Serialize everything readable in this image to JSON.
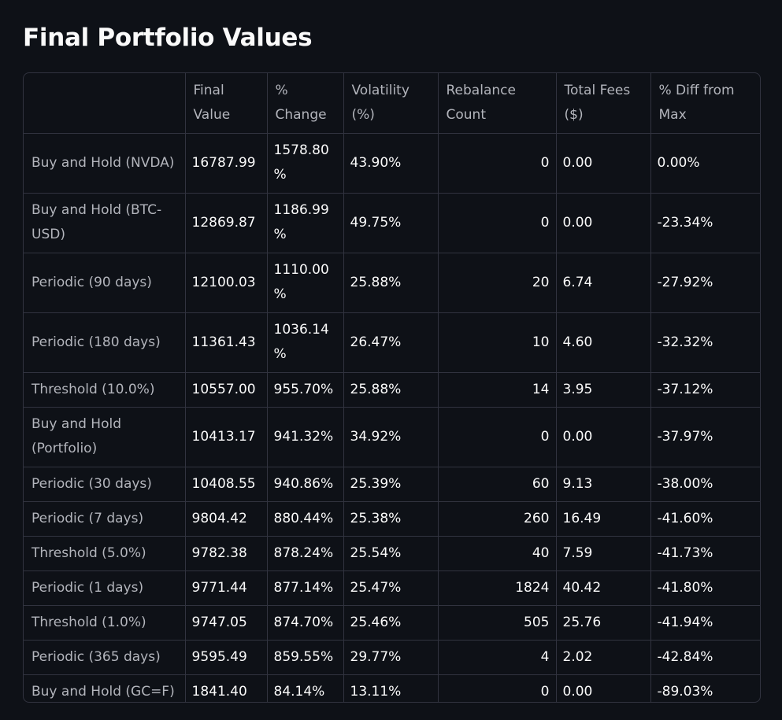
{
  "title": "Final Portfolio Values",
  "table": {
    "columns": [
      "",
      "Final Value",
      "% Change",
      "Volatility (%)",
      "Rebalance Count",
      "Total Fees ($)",
      "% Diff from Max"
    ],
    "rows": [
      {
        "label": "Buy and Hold (NVDA)",
        "final_value": "16787.99",
        "pct_change": "1578.80 %",
        "volatility": "43.90%",
        "rebalance_count": "0",
        "total_fees": "0.00",
        "diff_from_max": "0.00%"
      },
      {
        "label": "Buy and Hold (BTC-USD)",
        "final_value": "12869.87",
        "pct_change": "1186.99 %",
        "volatility": "49.75%",
        "rebalance_count": "0",
        "total_fees": "0.00",
        "diff_from_max": "-23.34%"
      },
      {
        "label": "Periodic (90 days)",
        "final_value": "12100.03",
        "pct_change": "1110.00 %",
        "volatility": "25.88%",
        "rebalance_count": "20",
        "total_fees": "6.74",
        "diff_from_max": "-27.92%"
      },
      {
        "label": "Periodic (180 days)",
        "final_value": "11361.43",
        "pct_change": "1036.14 %",
        "volatility": "26.47%",
        "rebalance_count": "10",
        "total_fees": "4.60",
        "diff_from_max": "-32.32%"
      },
      {
        "label": "Threshold (10.0%)",
        "final_value": "10557.00",
        "pct_change": "955.70%",
        "volatility": "25.88%",
        "rebalance_count": "14",
        "total_fees": "3.95",
        "diff_from_max": "-37.12%"
      },
      {
        "label": "Buy and Hold (Portfolio)",
        "final_value": "10413.17",
        "pct_change": "941.32%",
        "volatility": "34.92%",
        "rebalance_count": "0",
        "total_fees": "0.00",
        "diff_from_max": "-37.97%"
      },
      {
        "label": "Periodic (30 days)",
        "final_value": "10408.55",
        "pct_change": "940.86%",
        "volatility": "25.39%",
        "rebalance_count": "60",
        "total_fees": "9.13",
        "diff_from_max": "-38.00%"
      },
      {
        "label": "Periodic (7 days)",
        "final_value": "9804.42",
        "pct_change": "880.44%",
        "volatility": "25.38%",
        "rebalance_count": "260",
        "total_fees": "16.49",
        "diff_from_max": "-41.60%"
      },
      {
        "label": "Threshold (5.0%)",
        "final_value": "9782.38",
        "pct_change": "878.24%",
        "volatility": "25.54%",
        "rebalance_count": "40",
        "total_fees": "7.59",
        "diff_from_max": "-41.73%"
      },
      {
        "label": "Periodic (1 days)",
        "final_value": "9771.44",
        "pct_change": "877.14%",
        "volatility": "25.47%",
        "rebalance_count": "1824",
        "total_fees": "40.42",
        "diff_from_max": "-41.80%"
      },
      {
        "label": "Threshold (1.0%)",
        "final_value": "9747.05",
        "pct_change": "874.70%",
        "volatility": "25.46%",
        "rebalance_count": "505",
        "total_fees": "25.76",
        "diff_from_max": "-41.94%"
      },
      {
        "label": "Periodic (365 days)",
        "final_value": "9595.49",
        "pct_change": "859.55%",
        "volatility": "29.77%",
        "rebalance_count": "4",
        "total_fees": "2.02",
        "diff_from_max": "-42.84%"
      },
      {
        "label": "Buy and Hold (GC=F)",
        "final_value": "1841.40",
        "pct_change": "84.14%",
        "volatility": "13.11%",
        "rebalance_count": "0",
        "total_fees": "0.00",
        "diff_from_max": "-89.03%"
      }
    ]
  },
  "colors": {
    "background": "#0e1117",
    "text": "#fafafa",
    "muted_text": "#b3b5bc",
    "border": "#31333f"
  }
}
